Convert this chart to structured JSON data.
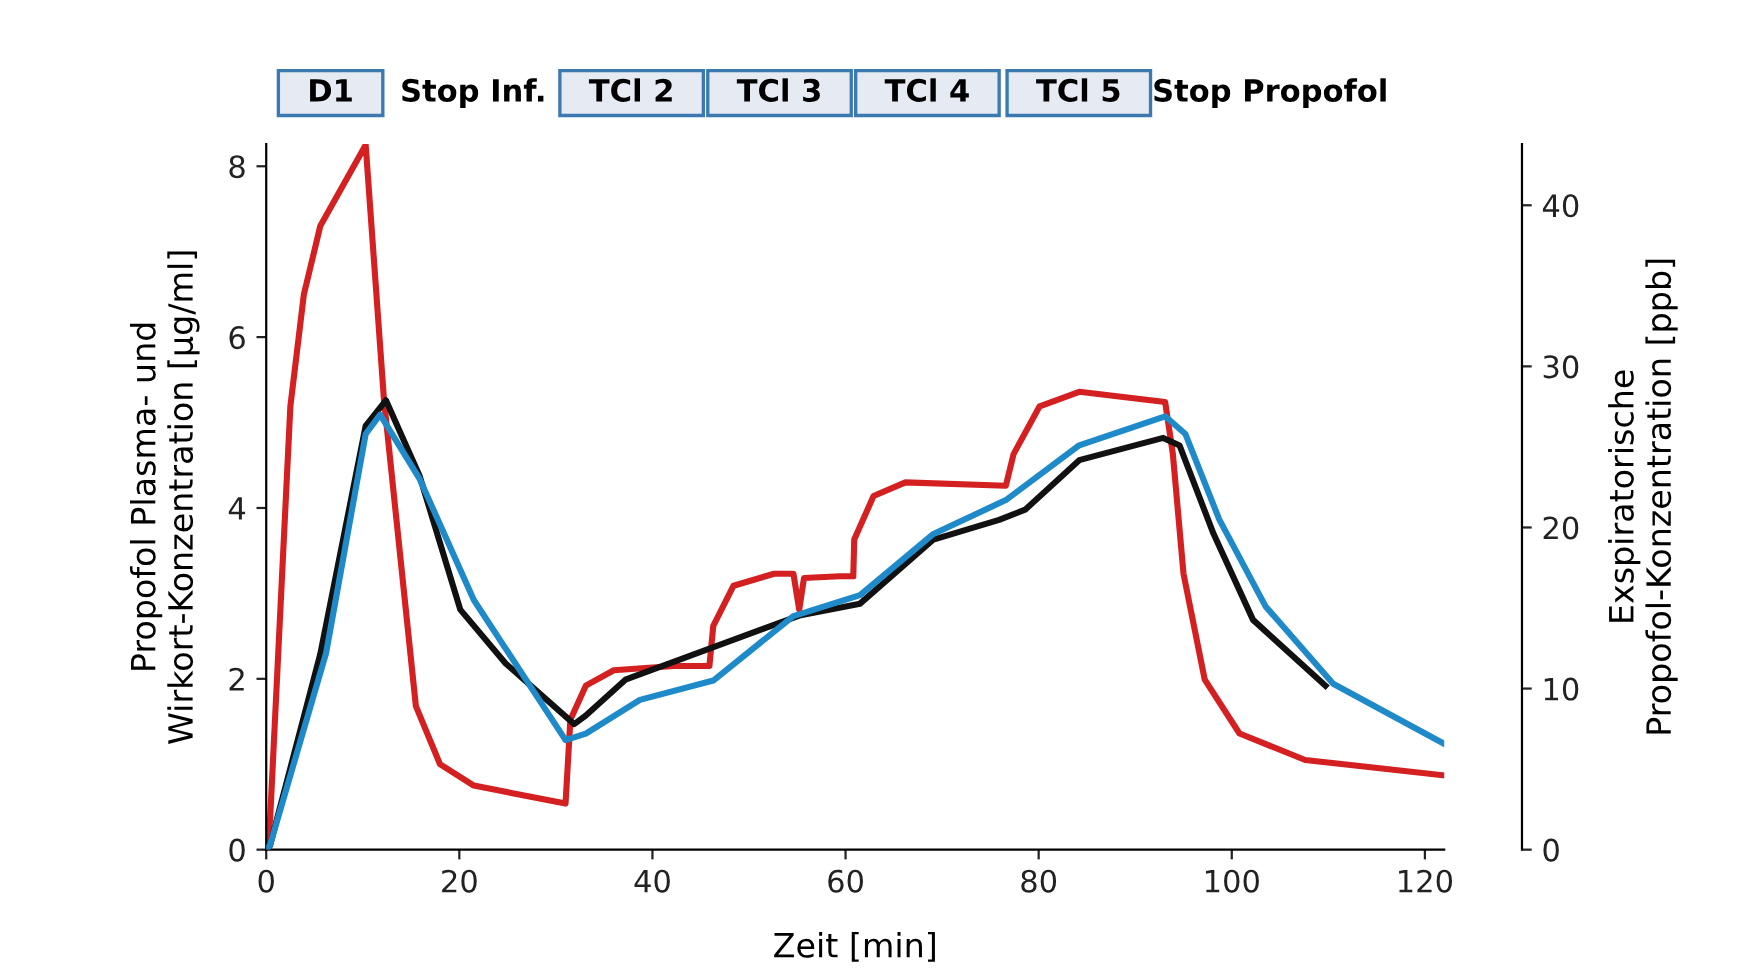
{
  "chart_data": {
    "type": "line",
    "xlabel": "Zeit [min]",
    "ylabel": "Propofol Plasma- und\nWirkort-Konzentration [µg/ml]",
    "y2label": "Exspiratorische\nPropofol-Konzentration [ppb]",
    "annotations": [
      "D1",
      "Stop Inf.",
      "TCl 2",
      "TCl 3",
      "TCl 4",
      "TCl 5",
      "Stop Propofol"
    ],
    "xlim": [
      0,
      122
    ],
    "xticks": [
      0,
      20,
      40,
      60,
      80,
      100,
      120
    ],
    "ylim": [
      0,
      8.26
    ],
    "yticks": [
      0,
      2,
      4,
      6,
      8
    ],
    "y2lim": [
      0,
      43.8
    ],
    "y2ticks": [
      0,
      10,
      20,
      30,
      40
    ],
    "grid": false,
    "legend": false,
    "marker": "none",
    "line_style": "solid",
    "series": [
      {
        "color": "#d42020",
        "x": [
          0,
          0.4,
          2.5,
          3.9,
          5.6,
          10.3,
          12.2,
          15.5,
          18.0,
          21.5,
          31.0,
          31.5,
          33.1,
          36.0,
          42.2,
          45.9,
          46.3,
          48.4,
          52.6,
          54.6,
          55.2,
          55.7,
          59.4,
          60.8,
          60.9,
          62.9,
          66.2,
          76.6,
          77.4,
          80.1,
          84.2,
          93.1,
          93.9,
          95.0,
          97.2,
          100.8,
          107.6,
          121.9
        ],
        "values": [
          0,
          0.35,
          5.19,
          6.5,
          7.3,
          8.25,
          5.26,
          1.68,
          1.0,
          0.75,
          0.54,
          1.52,
          1.92,
          2.1,
          2.15,
          2.15,
          2.62,
          3.09,
          3.23,
          3.23,
          2.81,
          3.18,
          3.2,
          3.2,
          3.63,
          4.14,
          4.3,
          4.26,
          4.63,
          5.19,
          5.36,
          5.24,
          4.63,
          3.23,
          1.99,
          1.36,
          1.05,
          0.87
        ]
      },
      {
        "color": "#111111",
        "x": [
          0,
          0.4,
          5.6,
          10.3,
          12.4,
          15.9,
          20.1,
          24.8,
          31.9,
          33.1,
          37.2,
          55.2,
          61.5,
          69.1,
          75.9,
          78.6,
          84.2,
          92.9,
          94.6,
          98.1,
          102.2,
          109.7
        ],
        "values": [
          0,
          0.05,
          2.29,
          4.96,
          5.26,
          4.37,
          2.81,
          2.18,
          1.47,
          1.57,
          1.99,
          2.74,
          2.88,
          3.63,
          3.86,
          3.98,
          4.56,
          4.82,
          4.73,
          3.7,
          2.69,
          1.92
        ]
      },
      {
        "color": "#1f8ac9",
        "axis": "y2",
        "x": [
          0,
          0.4,
          6.2,
          10.3,
          11.8,
          15.9,
          21.5,
          31.0,
          33.1,
          38.7,
          46.3,
          54.6,
          61.5,
          69.1,
          76.6,
          84.2,
          93.1,
          95.2,
          98.7,
          103.5,
          110.5,
          121.9
        ],
        "values": [
          0,
          0.3,
          12.2,
          25.8,
          27.0,
          23.0,
          15.5,
          6.8,
          7.2,
          9.3,
          10.5,
          14.5,
          15.8,
          19.6,
          21.7,
          25.1,
          26.9,
          25.8,
          20.5,
          15.1,
          10.3,
          6.6
        ]
      }
    ]
  }
}
